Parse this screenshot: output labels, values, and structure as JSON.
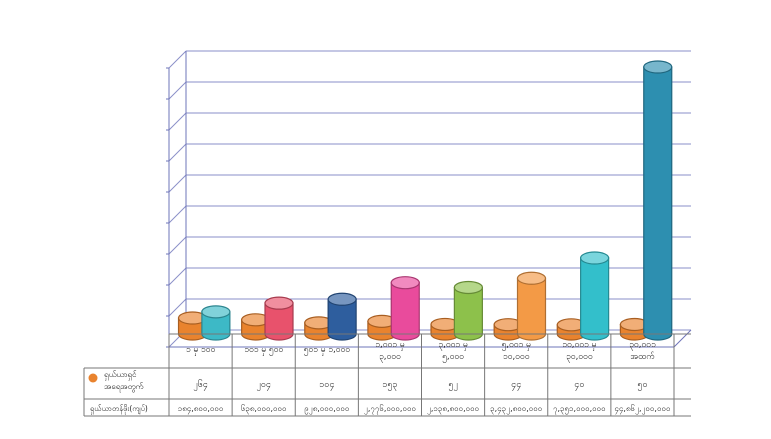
{
  "chart_data": {
    "type": "bar",
    "style": "3d-cylinder",
    "grid": true,
    "legend": "table-left",
    "categories": [
      [
        "၁ မှ ၁၀၀"
      ],
      [
        "၁၀၁ မှ ၅၀၀"
      ],
      [
        "၅၀၁ မှ ၁,၀၀၀"
      ],
      [
        "၁,၀၀၁ မှ",
        "၃,၀၀၀"
      ],
      [
        "၃,၀၀၁ မှ",
        "၅,၀၀၀"
      ],
      [
        "၅,၀၀၁ မှ",
        "၁၀,၀၀၀"
      ],
      [
        "၁၀,၀၀၁ မှ",
        "၃၀,၀၀၀"
      ],
      [
        "၃၀,၀၀၁",
        "အထက်"
      ]
    ],
    "table": {
      "legend_row_label": [
        "ရှယ်ယာရှင်",
        "အရေအတွက်"
      ],
      "amount_row_label": "ရှယ်ယာတန်ဖိုး(ကျပ်)",
      "holders": [
        "၂၆၄",
        "၂၀၄",
        "၁၀၄",
        "၁၅၃",
        "၅၂",
        "၄၄",
        "၄၀",
        "၅၀"
      ],
      "amounts": [
        "၁၈၄,၈၀၀,၀၀၀",
        "၆၃၈,၀၀၀,၀၀၀",
        "၉၂၈,၀၀၀,၀၀၀",
        "၂,၇၇၆,၀၀၀,၀၀၀",
        "၂,၁၃၈,၈၀၀,၀၀၀",
        "၃,၄၃၂,၈၀၀,၀၀၀",
        "၇,၃၅၁,၀၀၀,၀၀၀",
        "၄၄,၈၆၂,၂၀၀,၀၀၀"
      ]
    },
    "series": [
      {
        "values": [
          264,
          204,
          104,
          153,
          52,
          44,
          40,
          50
        ],
        "color": "#E9832E"
      },
      {
        "values": [
          184.8,
          638,
          928,
          2776,
          2138.8,
          3432.8,
          7351,
          44862.2
        ],
        "colors": [
          "#3DB9C6",
          "#E8526C",
          "#2E5E9E",
          "#E94B9C",
          "#8DC14B",
          "#F39A46",
          "#33BFCB",
          "#2D8FB0"
        ]
      }
    ]
  }
}
